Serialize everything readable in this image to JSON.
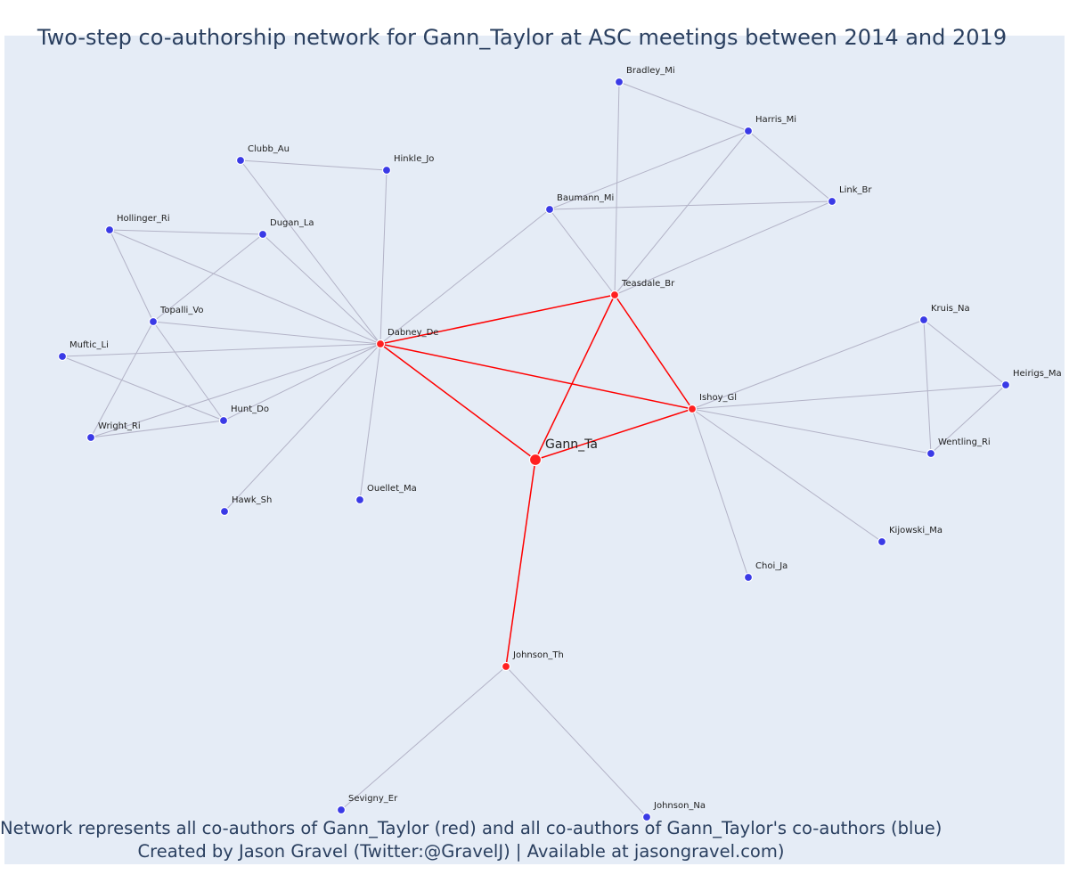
{
  "title": "Two-step co-authorship network for Gann_Taylor at ASC meetings between 2014 and 2019",
  "caption": {
    "line1": "Network represents all co-authors of Gann_Taylor (red) and all co-authors of Gann_Taylor's co-authors (blue)",
    "line2": "Created by Jason Gravel (Twitter:@GravelJ) | Available at jasongravel.com)"
  },
  "colors": {
    "plot_background": "#e5ecf6",
    "text": "#2a3f5f",
    "primary_node": "#ff2020",
    "secondary_node": "#3a3ae6",
    "primary_edge": "#ff0000",
    "secondary_edge": "#b3b3c7"
  },
  "chart_data": {
    "type": "network",
    "focal_author": "Gann_Ta",
    "nodes": [
      {
        "id": "Gann_Ta",
        "group": "focal"
      },
      {
        "id": "Dabney_De",
        "group": "coauthor"
      },
      {
        "id": "Teasdale_Br",
        "group": "coauthor"
      },
      {
        "id": "Ishoy_Gl",
        "group": "coauthor"
      },
      {
        "id": "Johnson_Th",
        "group": "coauthor"
      },
      {
        "id": "Bradley_Mi",
        "group": "second"
      },
      {
        "id": "Harris_Mi",
        "group": "second"
      },
      {
        "id": "Link_Br",
        "group": "second"
      },
      {
        "id": "Baumann_Mi",
        "group": "second"
      },
      {
        "id": "Clubb_Au",
        "group": "second"
      },
      {
        "id": "Hinkle_Jo",
        "group": "second"
      },
      {
        "id": "Hollinger_Ri",
        "group": "second"
      },
      {
        "id": "Dugan_La",
        "group": "second"
      },
      {
        "id": "Topalli_Vo",
        "group": "second"
      },
      {
        "id": "Muftic_Li",
        "group": "second"
      },
      {
        "id": "Hunt_Do",
        "group": "second"
      },
      {
        "id": "Wright_Ri",
        "group": "second"
      },
      {
        "id": "Hawk_Sh",
        "group": "second"
      },
      {
        "id": "Ouellet_Ma",
        "group": "second"
      },
      {
        "id": "Kruis_Na",
        "group": "second"
      },
      {
        "id": "Heirigs_Ma",
        "group": "second"
      },
      {
        "id": "Wentling_Ri",
        "group": "second"
      },
      {
        "id": "Kijowski_Ma",
        "group": "second"
      },
      {
        "id": "Choi_Ja",
        "group": "second"
      },
      {
        "id": "Sevigny_Er",
        "group": "second"
      },
      {
        "id": "Johnson_Na",
        "group": "second"
      }
    ],
    "edges": [
      [
        "Gann_Ta",
        "Dabney_De"
      ],
      [
        "Gann_Ta",
        "Teasdale_Br"
      ],
      [
        "Gann_Ta",
        "Ishoy_Gl"
      ],
      [
        "Gann_Ta",
        "Johnson_Th"
      ],
      [
        "Dabney_De",
        "Teasdale_Br"
      ],
      [
        "Dabney_De",
        "Ishoy_Gl"
      ],
      [
        "Teasdale_Br",
        "Ishoy_Gl"
      ],
      [
        "Bradley_Mi",
        "Harris_Mi"
      ],
      [
        "Bradley_Mi",
        "Teasdale_Br"
      ],
      [
        "Harris_Mi",
        "Link_Br"
      ],
      [
        "Harris_Mi",
        "Baumann_Mi"
      ],
      [
        "Harris_Mi",
        "Teasdale_Br"
      ],
      [
        "Baumann_Mi",
        "Link_Br"
      ],
      [
        "Baumann_Mi",
        "Teasdale_Br"
      ],
      [
        "Link_Br",
        "Teasdale_Br"
      ],
      [
        "Baumann_Mi",
        "Dabney_De"
      ],
      [
        "Clubb_Au",
        "Hinkle_Jo"
      ],
      [
        "Clubb_Au",
        "Dabney_De"
      ],
      [
        "Hinkle_Jo",
        "Dabney_De"
      ],
      [
        "Hollinger_Ri",
        "Dugan_La"
      ],
      [
        "Hollinger_Ri",
        "Dabney_De"
      ],
      [
        "Hollinger_Ri",
        "Topalli_Vo"
      ],
      [
        "Dugan_La",
        "Dabney_De"
      ],
      [
        "Dugan_La",
        "Topalli_Vo"
      ],
      [
        "Topalli_Vo",
        "Dabney_De"
      ],
      [
        "Topalli_Vo",
        "Hunt_Do"
      ],
      [
        "Topalli_Vo",
        "Wright_Ri"
      ],
      [
        "Muftic_Li",
        "Dabney_De"
      ],
      [
        "Muftic_Li",
        "Hunt_Do"
      ],
      [
        "Hunt_Do",
        "Dabney_De"
      ],
      [
        "Hunt_Do",
        "Wright_Ri"
      ],
      [
        "Wright_Ri",
        "Dabney_De"
      ],
      [
        "Hawk_Sh",
        "Dabney_De"
      ],
      [
        "Ouellet_Ma",
        "Dabney_De"
      ],
      [
        "Kruis_Na",
        "Heirigs_Ma"
      ],
      [
        "Kruis_Na",
        "Wentling_Ri"
      ],
      [
        "Kruis_Na",
        "Ishoy_Gl"
      ],
      [
        "Heirigs_Ma",
        "Wentling_Ri"
      ],
      [
        "Heirigs_Ma",
        "Ishoy_Gl"
      ],
      [
        "Wentling_Ri",
        "Ishoy_Gl"
      ],
      [
        "Kijowski_Ma",
        "Ishoy_Gl"
      ],
      [
        "Choi_Ja",
        "Ishoy_Gl"
      ],
      [
        "Johnson_Th",
        "Sevigny_Er"
      ],
      [
        "Johnson_Th",
        "Johnson_Na"
      ]
    ]
  }
}
